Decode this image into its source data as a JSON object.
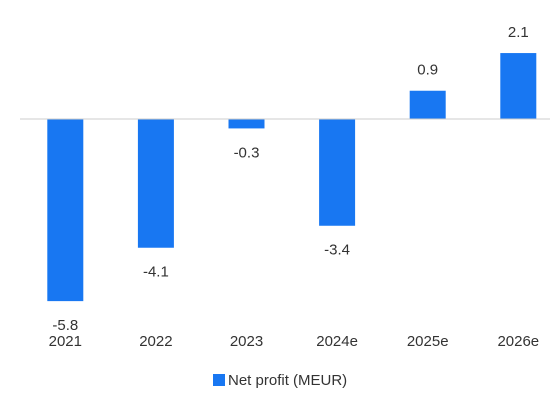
{
  "chart_data": {
    "type": "bar",
    "categories": [
      "2021",
      "2022",
      "2023",
      "2024e",
      "2025e",
      "2026e"
    ],
    "series": [
      {
        "name": "Net profit (MEUR)",
        "color": "#1877f2",
        "values": [
          -5.8,
          -4.1,
          -0.3,
          -3.4,
          0.9,
          2.1
        ]
      }
    ],
    "ylim": [
      -6,
      3
    ]
  }
}
